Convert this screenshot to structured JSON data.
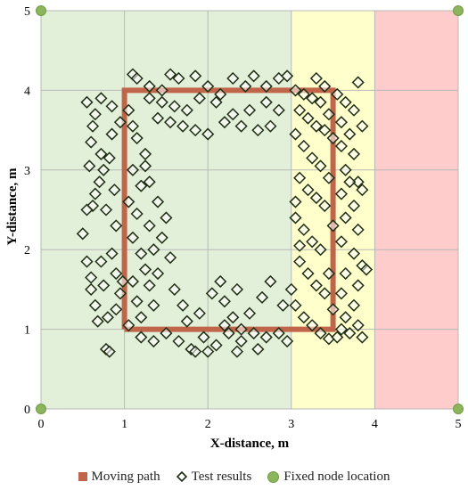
{
  "chart_data": {
    "type": "scatter",
    "xlabel": "X-distance, m",
    "ylabel": "Y-distance, m",
    "xlim": [
      0,
      5
    ],
    "ylim": [
      0,
      5
    ],
    "x_ticks": [
      "0",
      "1",
      "2",
      "3",
      "4",
      "5"
    ],
    "y_ticks": [
      "0",
      "1",
      "2",
      "3",
      "4",
      "5"
    ],
    "grid": true,
    "legend_position": "bottom",
    "zones": [
      {
        "x_range": [
          0,
          3
        ],
        "color": "#e2f0d9"
      },
      {
        "x_range": [
          3,
          4
        ],
        "color": "#ffffcc"
      },
      {
        "x_range": [
          4,
          5
        ],
        "color": "#ffcccc"
      }
    ],
    "series": [
      {
        "name": "Moving path",
        "kind": "path",
        "color": "#c0654a",
        "points": [
          [
            1,
            1
          ],
          [
            1,
            4
          ],
          [
            3.5,
            4
          ],
          [
            3.5,
            1
          ],
          [
            1,
            1
          ]
        ]
      },
      {
        "name": "Test results",
        "kind": "diamond",
        "color": "#1e2d14",
        "points": [
          [
            0.55,
            3.85
          ],
          [
            0.65,
            3.7
          ],
          [
            0.62,
            3.55
          ],
          [
            0.72,
            3.9
          ],
          [
            0.85,
            3.8
          ],
          [
            0.6,
            3.35
          ],
          [
            0.72,
            3.2
          ],
          [
            0.58,
            3.05
          ],
          [
            0.7,
            2.85
          ],
          [
            0.82,
            3.15
          ],
          [
            0.65,
            2.7
          ],
          [
            0.78,
            2.5
          ],
          [
            0.9,
            2.3
          ],
          [
            0.62,
            2.55
          ],
          [
            0.5,
            2.2
          ],
          [
            0.85,
            3.45
          ],
          [
            0.95,
            3.6
          ],
          [
            0.75,
            3.0
          ],
          [
            0.88,
            2.75
          ],
          [
            0.55,
            2.5
          ],
          [
            0.6,
            1.65
          ],
          [
            0.75,
            1.55
          ],
          [
            0.9,
            1.7
          ],
          [
            0.65,
            1.3
          ],
          [
            0.8,
            1.15
          ],
          [
            0.95,
            1.45
          ],
          [
            0.72,
            1.85
          ],
          [
            0.85,
            1.95
          ],
          [
            0.55,
            1.85
          ],
          [
            0.78,
            0.75
          ],
          [
            0.82,
            0.72
          ],
          [
            0.68,
            1.1
          ],
          [
            0.9,
            1.25
          ],
          [
            0.6,
            1.5
          ],
          [
            0.98,
            1.6
          ],
          [
            1.1,
            4.2
          ],
          [
            1.15,
            4.15
          ],
          [
            1.3,
            4.05
          ],
          [
            1.45,
            4.0
          ],
          [
            1.55,
            4.2
          ],
          [
            1.65,
            4.15
          ],
          [
            1.85,
            4.18
          ],
          [
            2.0,
            4.05
          ],
          [
            2.15,
            3.95
          ],
          [
            2.3,
            4.15
          ],
          [
            2.45,
            4.05
          ],
          [
            2.55,
            4.18
          ],
          [
            2.7,
            4.05
          ],
          [
            2.85,
            4.15
          ],
          [
            2.95,
            4.18
          ],
          [
            1.3,
            3.9
          ],
          [
            1.45,
            3.85
          ],
          [
            1.6,
            3.8
          ],
          [
            1.75,
            3.75
          ],
          [
            1.9,
            3.9
          ],
          [
            2.1,
            3.85
          ],
          [
            2.3,
            3.7
          ],
          [
            2.5,
            3.75
          ],
          [
            2.7,
            3.85
          ],
          [
            2.85,
            3.75
          ],
          [
            1.4,
            3.65
          ],
          [
            1.55,
            3.6
          ],
          [
            1.7,
            3.55
          ],
          [
            1.85,
            3.5
          ],
          [
            2.0,
            3.45
          ],
          [
            2.2,
            3.6
          ],
          [
            2.4,
            3.55
          ],
          [
            2.6,
            3.5
          ],
          [
            2.75,
            3.55
          ],
          [
            1.05,
            3.75
          ],
          [
            1.1,
            3.55
          ],
          [
            1.15,
            3.4
          ],
          [
            1.25,
            3.2
          ],
          [
            1.1,
            3.0
          ],
          [
            1.2,
            2.8
          ],
          [
            1.05,
            2.6
          ],
          [
            1.15,
            2.45
          ],
          [
            1.3,
            2.3
          ],
          [
            1.1,
            2.15
          ],
          [
            1.2,
            1.95
          ],
          [
            1.35,
            2.0
          ],
          [
            1.25,
            1.75
          ],
          [
            1.1,
            1.6
          ],
          [
            1.3,
            1.55
          ],
          [
            1.15,
            1.35
          ],
          [
            1.35,
            1.3
          ],
          [
            1.2,
            1.15
          ],
          [
            1.05,
            1.05
          ],
          [
            1.4,
            2.6
          ],
          [
            1.5,
            2.4
          ],
          [
            1.45,
            2.15
          ],
          [
            1.55,
            1.9
          ],
          [
            1.4,
            1.7
          ],
          [
            1.3,
            2.85
          ],
          [
            1.25,
            3.05
          ],
          [
            1.2,
            0.9
          ],
          [
            1.35,
            0.85
          ],
          [
            1.5,
            0.95
          ],
          [
            1.65,
            0.85
          ],
          [
            1.8,
            0.75
          ],
          [
            1.95,
            0.9
          ],
          [
            2.1,
            0.8
          ],
          [
            2.25,
            0.95
          ],
          [
            2.4,
            0.85
          ],
          [
            2.55,
            0.95
          ],
          [
            2.7,
            0.9
          ],
          [
            2.85,
            0.95
          ],
          [
            2.95,
            0.85
          ],
          [
            1.75,
            1.1
          ],
          [
            1.9,
            1.2
          ],
          [
            2.05,
            1.45
          ],
          [
            2.2,
            1.35
          ],
          [
            2.35,
            1.5
          ],
          [
            2.5,
            1.2
          ],
          [
            2.65,
            1.4
          ],
          [
            2.75,
            1.6
          ],
          [
            2.9,
            1.3
          ],
          [
            2.15,
            1.6
          ],
          [
            2.3,
            1.15
          ],
          [
            1.6,
            1.5
          ],
          [
            1.85,
            0.72
          ],
          [
            2.0,
            0.72
          ],
          [
            2.35,
            0.72
          ],
          [
            2.6,
            0.75
          ],
          [
            2.4,
            1.0
          ],
          [
            2.2,
            1.05
          ],
          [
            1.7,
            1.3
          ],
          [
            3.05,
            4.0
          ],
          [
            3.15,
            3.95
          ],
          [
            3.25,
            3.9
          ],
          [
            3.35,
            3.85
          ],
          [
            3.1,
            3.75
          ],
          [
            3.2,
            3.65
          ],
          [
            3.3,
            3.55
          ],
          [
            3.4,
            3.5
          ],
          [
            3.05,
            3.45
          ],
          [
            3.15,
            3.3
          ],
          [
            3.25,
            3.15
          ],
          [
            3.35,
            3.05
          ],
          [
            3.1,
            2.9
          ],
          [
            3.2,
            2.75
          ],
          [
            3.3,
            2.65
          ],
          [
            3.4,
            2.55
          ],
          [
            3.05,
            2.4
          ],
          [
            3.15,
            2.25
          ],
          [
            3.25,
            2.1
          ],
          [
            3.35,
            2.0
          ],
          [
            3.1,
            1.85
          ],
          [
            3.2,
            1.7
          ],
          [
            3.3,
            1.55
          ],
          [
            3.4,
            1.45
          ],
          [
            3.05,
            1.3
          ],
          [
            3.15,
            1.15
          ],
          [
            3.25,
            1.05
          ],
          [
            3.35,
            0.95
          ],
          [
            3.45,
            0.88
          ],
          [
            3.5,
            1.25
          ],
          [
            3.45,
            1.7
          ],
          [
            3.5,
            2.3
          ],
          [
            3.45,
            2.9
          ],
          [
            3.5,
            3.4
          ],
          [
            3.45,
            3.7
          ],
          [
            3.3,
            4.15
          ],
          [
            3.4,
            4.05
          ],
          [
            3.05,
            2.6
          ],
          [
            3.1,
            2.05
          ],
          [
            3.0,
            1.5
          ],
          [
            3.55,
            3.95
          ],
          [
            3.65,
            3.85
          ],
          [
            3.75,
            3.75
          ],
          [
            3.8,
            4.1
          ],
          [
            3.6,
            3.6
          ],
          [
            3.7,
            3.45
          ],
          [
            3.85,
            3.55
          ],
          [
            3.6,
            3.3
          ],
          [
            3.75,
            3.2
          ],
          [
            3.65,
            3.0
          ],
          [
            3.8,
            2.85
          ],
          [
            3.6,
            2.7
          ],
          [
            3.75,
            2.55
          ],
          [
            3.85,
            2.75
          ],
          [
            3.65,
            2.4
          ],
          [
            3.8,
            2.25
          ],
          [
            3.6,
            2.1
          ],
          [
            3.75,
            1.95
          ],
          [
            3.85,
            1.8
          ],
          [
            3.65,
            1.7
          ],
          [
            3.8,
            1.55
          ],
          [
            3.6,
            1.45
          ],
          [
            3.75,
            1.3
          ],
          [
            3.65,
            1.15
          ],
          [
            3.8,
            1.05
          ],
          [
            3.7,
            0.95
          ],
          [
            3.85,
            0.9
          ],
          [
            3.55,
            0.9
          ],
          [
            3.6,
            1.0
          ],
          [
            3.9,
            1.75
          ],
          [
            3.7,
            2.85
          ]
        ]
      },
      {
        "name": "Fixed node location",
        "kind": "node",
        "color": "#8db55d",
        "points": [
          [
            0,
            0
          ],
          [
            5,
            0
          ],
          [
            0,
            5
          ],
          [
            5,
            5
          ]
        ]
      }
    ]
  }
}
